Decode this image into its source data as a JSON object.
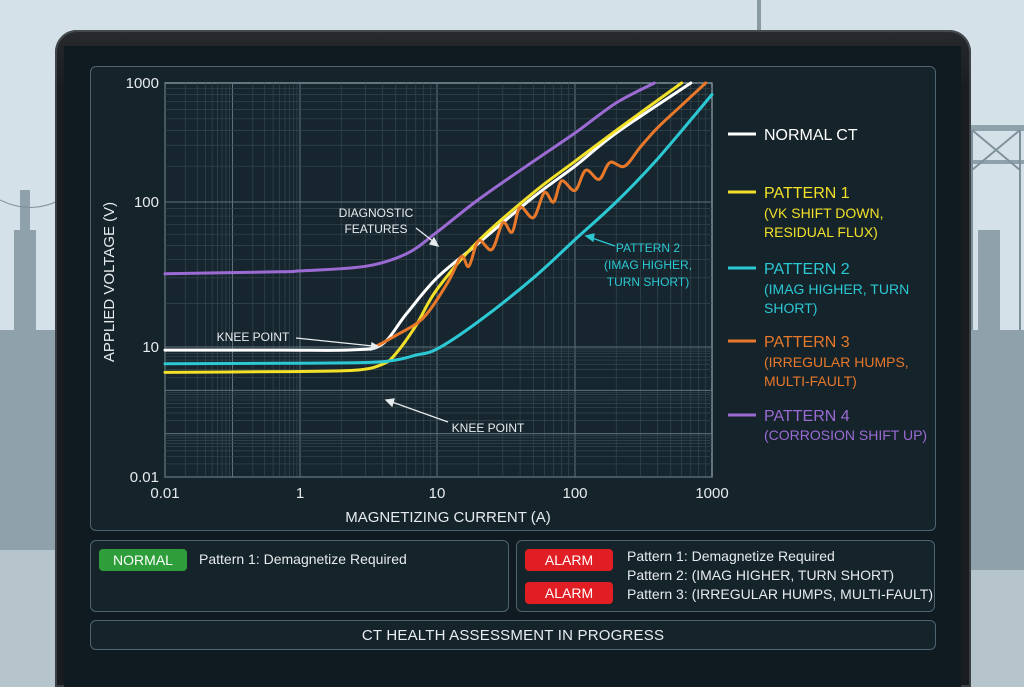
{
  "chart_data": {
    "type": "line",
    "xlabel": "MAGNETIZING CURRENT (A)",
    "ylabel": "APPLIED VOLTAGE (V)",
    "xscale": "log",
    "yscale": "log",
    "xlim": [
      0.01,
      1000
    ],
    "ylim": [
      0.01,
      1000
    ],
    "x_ticks": [
      "0.01",
      "1",
      "10",
      "100",
      "1000"
    ],
    "y_ticks": [
      "1000",
      "100",
      "10",
      "0.01"
    ],
    "grid": true,
    "legend_position": "right",
    "series": [
      {
        "name": "NORMAL CT",
        "color": "#ffffff",
        "x": [
          0.01,
          0.5,
          2.5,
          4,
          6,
          10,
          20,
          50,
          100,
          200,
          700
        ],
        "y": [
          8.5,
          8.5,
          8.6,
          10.5,
          17,
          30,
          52,
          110,
          200,
          380,
          1000
        ]
      },
      {
        "name": "PATTERN 1",
        "sub": "(VK SHIFT DOWN, RESIDUAL FLUX)",
        "color": "#f2e128",
        "x": [
          0.01,
          0.5,
          2.5,
          4,
          5,
          7,
          10,
          20,
          50,
          100,
          200,
          600
        ],
        "y": [
          2.6,
          2.7,
          2.9,
          4,
          7,
          14,
          25,
          54,
          120,
          220,
          400,
          1000
        ]
      },
      {
        "name": "PATTERN 2",
        "sub": "(IMAG HIGHER, TURN SHORT)",
        "color": "#2cc8d4",
        "x": [
          0.01,
          0.5,
          3,
          5,
          7,
          10,
          20,
          50,
          100,
          200,
          400,
          1000
        ],
        "y": [
          4.1,
          4.2,
          4.4,
          5,
          6.5,
          9,
          15,
          30,
          55,
          100,
          230,
          800
        ]
      },
      {
        "name": "PATTERN 3",
        "sub": "(IRREGULAR HUMPS, MULTI-FAULT)",
        "color": "#e8782a",
        "x": [
          3.5,
          5,
          8,
          12,
          15,
          17,
          20,
          25,
          30,
          35,
          40,
          50,
          60,
          70,
          80,
          100,
          120,
          150,
          180,
          230,
          300,
          400,
          600,
          900
        ],
        "y": [
          10,
          12,
          16,
          28,
          42,
          36,
          54,
          47,
          72,
          62,
          92,
          78,
          120,
          100,
          150,
          125,
          185,
          155,
          215,
          200,
          290,
          420,
          650,
          1000
        ]
      },
      {
        "name": "PATTERN 4",
        "sub": "(CORROSION SHIFT UP)",
        "color": "#9b6bd3",
        "x": [
          0.01,
          0.5,
          1,
          3,
          6,
          10,
          20,
          50,
          100,
          200,
          380
        ],
        "y": [
          32,
          33,
          33.5,
          36,
          44,
          62,
          105,
          220,
          380,
          680,
          1000
        ]
      }
    ],
    "annotations": [
      "DIAGNOSTIC FEATURES",
      "KNEE POINT",
      "PATTERN 2 (IMAG HIGHER, TURN SHORT)",
      "KNEE POINT"
    ]
  },
  "annotations": {
    "diagnostic_features_l1": "DIAGNOSTIC",
    "diagnostic_features_l2": "FEATURES",
    "knee_point_upper": "KNEE POINT",
    "knee_point_lower": "KNEE POINT",
    "pattern2_l1": "PATTERN 2",
    "pattern2_l2": "(IMAG HIGHER,",
    "pattern2_l3": "TURN SHORT)"
  },
  "legend": {
    "normal_ct": "NORMAL CT",
    "pattern1": "PATTERN 1",
    "pattern1_l2": "(VK SHIFT DOWN,",
    "pattern1_l3": "RESIDUAL FLUX)",
    "pattern2": "PATTERN 2",
    "pattern2_l2": "(IMAG HIGHER, TURN",
    "pattern2_l3": "SHORT)",
    "pattern3": "PATTERN 3",
    "pattern3_l2": "(IRREGULAR HUMPS,",
    "pattern3_l3": "MULTI-FAULT)",
    "pattern4": "PATTERN 4",
    "pattern4_l2": "(CORROSION SHIFT UP)"
  },
  "status_left": {
    "badge": "NORMAL",
    "text": "Pattern 1: Demagnetize Required"
  },
  "status_right": {
    "badge1": "ALARM",
    "badge2": "ALARM",
    "line1": "Pattern 1: Demagnetize Required",
    "line2": "Pattern 2: (IMAG HIGHER, TURN SHORT)",
    "line3": "Pattern 3: (IRREGULAR HUMPS, MULTI-FAULT)"
  },
  "footer": {
    "text": "CT HEALTH ASSESSMENT IN PROGRESS"
  },
  "colors": {
    "normal": "#ffffff",
    "pattern1": "#f2e128",
    "pattern2": "#2cc8d4",
    "pattern3": "#e8782a",
    "pattern4": "#9b6bd3",
    "alarm": "#e01e24",
    "ok": "#2e9e3a"
  }
}
